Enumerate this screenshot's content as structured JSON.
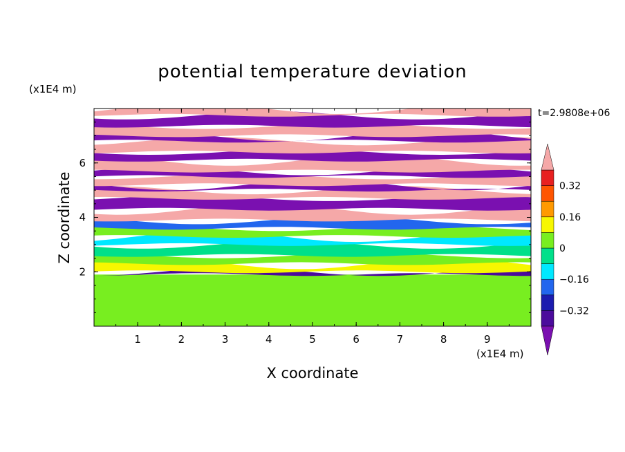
{
  "chart_data": {
    "type": "heatmap",
    "title": "potential temperature deviation",
    "xlabel": "X coordinate",
    "ylabel": "Z coordinate",
    "x_unit": "(x1E4 m)",
    "y_unit": "(x1E4 m)",
    "time_label": "t=2.9808e+06",
    "xlim": [
      0,
      10
    ],
    "ylim": [
      0,
      8
    ],
    "x_ticks": [
      "1",
      "2",
      "3",
      "4",
      "5",
      "6",
      "7",
      "8",
      "9"
    ],
    "y_ticks": [
      "2",
      "4",
      "6"
    ],
    "colorbar": {
      "levels": [
        -0.4,
        -0.32,
        -0.24,
        -0.16,
        -0.08,
        0,
        0.08,
        0.16,
        0.24,
        0.32,
        0.4
      ],
      "labels": [
        "0.32",
        "0.16",
        "0",
        "−0.16",
        "−0.32"
      ],
      "label_values": [
        0.32,
        0.16,
        0,
        -0.16,
        -0.32
      ],
      "colors": [
        "#4b0b9c",
        "#1c1caf",
        "#2266ee",
        "#00e8ff",
        "#00e08a",
        "#78ee20",
        "#f7f700",
        "#ff9900",
        "#ff5500",
        "#e82020"
      ],
      "over_color": "#f5a8a8",
      "under_color": "#7a10b0"
    },
    "bands": [
      {
        "z": [
          0.0,
          1.9
        ],
        "value": 0.04
      },
      {
        "z": [
          1.9,
          2.0
        ],
        "value": -0.36
      },
      {
        "z": [
          2.0,
          2.3
        ],
        "value": 0.12
      },
      {
        "z": [
          2.3,
          2.6
        ],
        "value": 0.04
      },
      {
        "z": [
          2.6,
          3.0
        ],
        "value": -0.05
      },
      {
        "z": [
          3.0,
          3.3
        ],
        "value": -0.12
      },
      {
        "z": [
          3.3,
          3.6
        ],
        "value": 0.05
      },
      {
        "z": [
          3.6,
          3.9
        ],
        "value": -0.22
      },
      {
        "z": [
          3.9,
          4.3
        ],
        "value": 0.45
      },
      {
        "z": [
          4.3,
          4.7
        ],
        "value": -0.45
      },
      {
        "z": [
          4.7,
          5.0
        ],
        "value": 0.45
      },
      {
        "z": [
          5.0,
          5.2
        ],
        "value": -0.45
      },
      {
        "z": [
          5.2,
          5.5
        ],
        "value": 0.45
      },
      {
        "z": [
          5.5,
          5.7
        ],
        "value": -0.45
      },
      {
        "z": [
          5.7,
          6.1
        ],
        "value": 0.45
      },
      {
        "z": [
          6.1,
          6.4
        ],
        "value": -0.45
      },
      {
        "z": [
          6.4,
          6.8
        ],
        "value": 0.45
      },
      {
        "z": [
          6.8,
          7.0
        ],
        "value": -0.45
      },
      {
        "z": [
          7.0,
          7.35
        ],
        "value": 0.45
      },
      {
        "z": [
          7.35,
          7.75
        ],
        "value": -0.45
      },
      {
        "z": [
          7.75,
          8.0
        ],
        "value": 0.45
      }
    ]
  }
}
